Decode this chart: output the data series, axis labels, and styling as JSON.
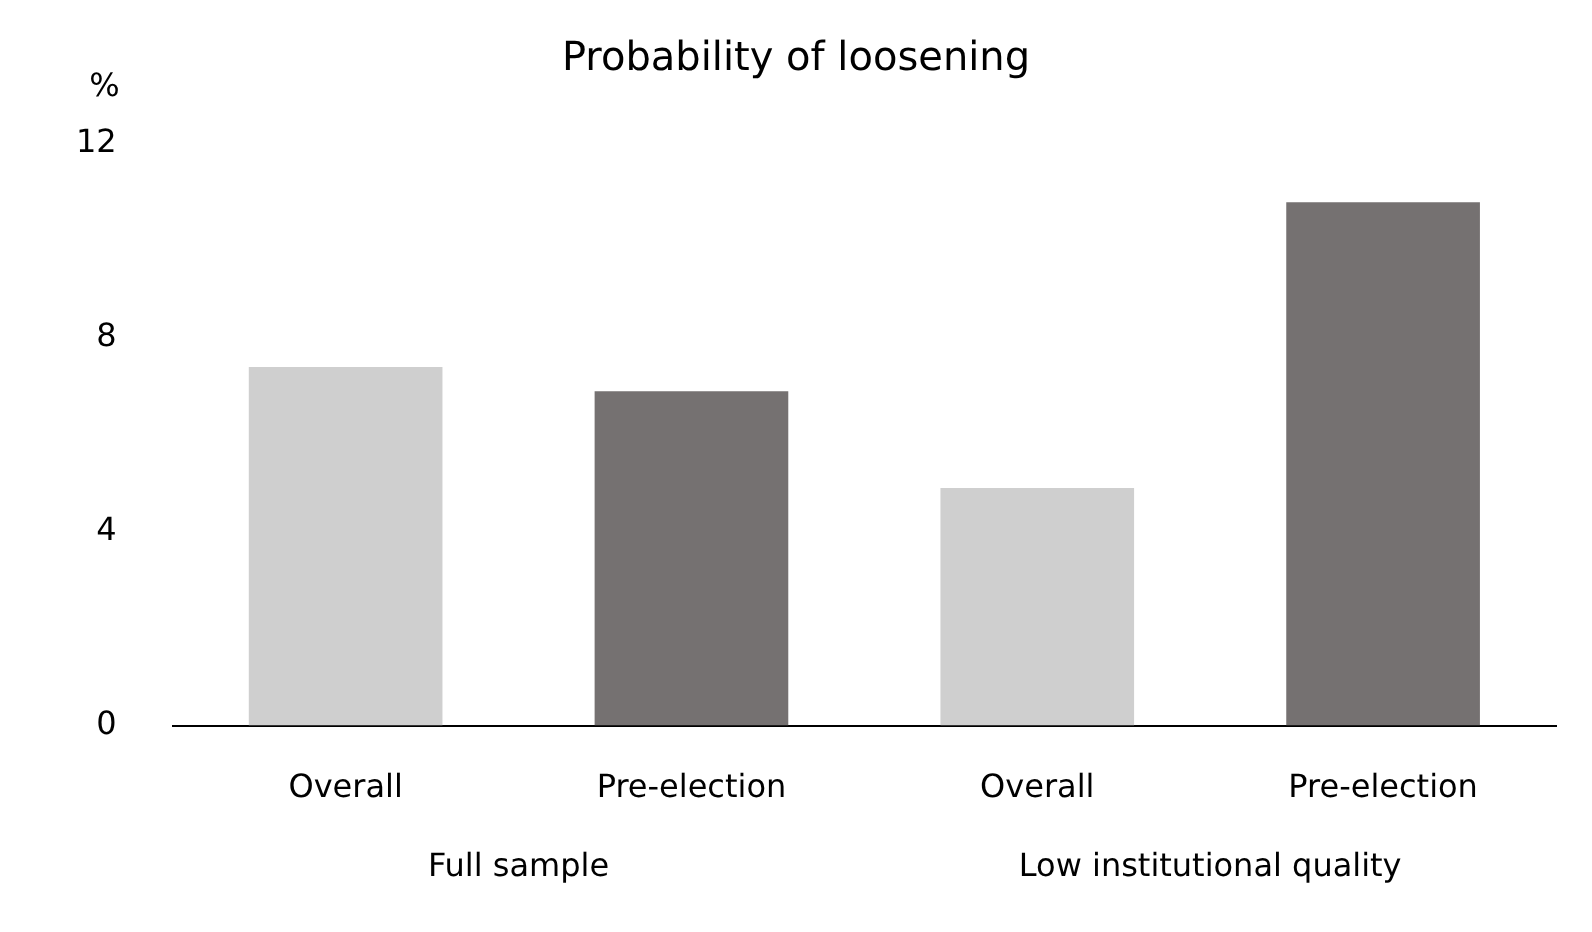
{
  "chart_data": {
    "type": "bar",
    "title": "Probability of loosening",
    "ylabel": "%",
    "categories": [
      "Overall",
      "Pre-election",
      "Overall",
      "Pre-election"
    ],
    "values": [
      7.4,
      6.9,
      4.9,
      10.8
    ],
    "colors": [
      "#cfcfcf",
      "#757171",
      "#cfcfcf",
      "#757171"
    ],
    "ylim": [
      0,
      12
    ],
    "yticks": [
      0,
      4,
      8,
      12
    ],
    "grid": false,
    "annotations": [
      "Full sample",
      "Low institutional quality"
    ]
  }
}
